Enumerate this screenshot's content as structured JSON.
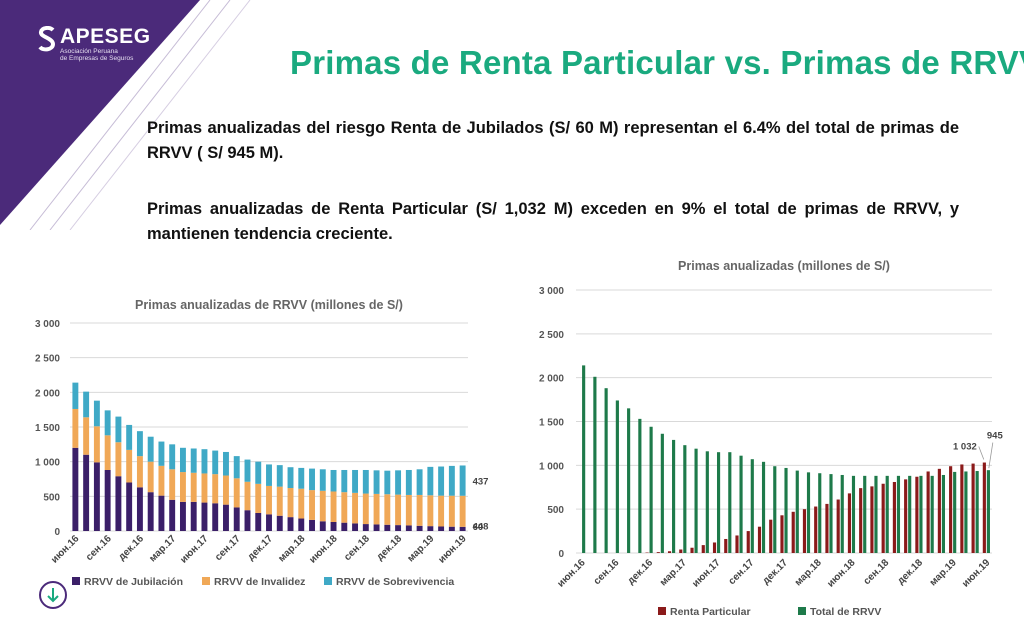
{
  "logo": {
    "name": "APESEG",
    "subtitle_line1": "Asociación Peruana",
    "subtitle_line2": "de Empresas de Seguros"
  },
  "title": "Primas de Renta Particular vs. Primas de RRVV",
  "paragraph1": "Primas anualizadas del riesgo Renta de Jubilados (S/ 60 M) representan el 6.4% del total de primas de RRVV ( S/ 945 M).",
  "paragraph2": "Primas anualizadas de Renta Particular (S/ 1,032 M) exceden en 9% el  total de primas de RRVV, y mantienen tendencia creciente.",
  "colors": {
    "purple": "#4b2a7a",
    "green": "#1aaa7f",
    "orange": "#f0a857",
    "blue": "#3fa9c6",
    "dark_purple": "#3b1f68",
    "dark_green": "#1e7a4a",
    "dark_red": "#8b1a1a"
  },
  "chart_data": [
    {
      "type": "bar",
      "stacked": true,
      "title": "Primas anualizadas de RRVV (millones de S/)",
      "categories": [
        "июн.16",
        "июл.16",
        "авг.16",
        "сен.16",
        "окт.16",
        "ноя.16",
        "дек.16",
        "янв.17",
        "фев.17",
        "мар.17",
        "апр.17",
        "май.17",
        "июн.17",
        "июл.17",
        "авг.17",
        "сен.17",
        "окт.17",
        "ноя.17",
        "дек.17",
        "янв.18",
        "фев.18",
        "мар.18",
        "апр.18",
        "май.18",
        "июн.18",
        "июл.18",
        "авг.18",
        "сен.18",
        "окт.18",
        "ноя.18",
        "дек.18",
        "янв.19",
        "фев.19",
        "мар.19",
        "апр.19",
        "май.19",
        "июн.19"
      ],
      "tick_labels": [
        "июн.16",
        "сен.16",
        "дек.16",
        "мар.17",
        "июн.17",
        "сен.17",
        "дек.17",
        "мар.18",
        "июн.18",
        "сен.18",
        "дек.18",
        "мар.19",
        "июн.19"
      ],
      "series": [
        {
          "name": "RRVV de Jubilación",
          "values": [
            1200,
            1100,
            990,
            880,
            790,
            700,
            630,
            560,
            510,
            450,
            420,
            420,
            410,
            400,
            380,
            340,
            300,
            260,
            240,
            220,
            200,
            180,
            160,
            140,
            130,
            120,
            110,
            100,
            95,
            90,
            85,
            80,
            75,
            70,
            65,
            62,
            60
          ]
        },
        {
          "name": "RRVV de Invalidez",
          "values": [
            560,
            540,
            520,
            500,
            490,
            470,
            450,
            440,
            430,
            440,
            430,
            420,
            420,
            420,
            420,
            420,
            410,
            420,
            410,
            420,
            420,
            430,
            430,
            440,
            440,
            440,
            440,
            440,
            440,
            440,
            440,
            440,
            445,
            445,
            445,
            447,
            448
          ]
        },
        {
          "name": "RRVV de Sobrevivencia",
          "values": [
            380,
            370,
            370,
            360,
            370,
            360,
            360,
            360,
            350,
            360,
            350,
            350,
            350,
            340,
            340,
            320,
            320,
            320,
            310,
            310,
            300,
            300,
            310,
            310,
            310,
            320,
            330,
            340,
            340,
            340,
            350,
            360,
            370,
            410,
            420,
            430,
            437
          ]
        }
      ],
      "data_labels": [
        "437",
        "448",
        "60"
      ],
      "ylim": [
        0,
        3000
      ],
      "y_ticks": [
        "3 000",
        "2 500",
        "2 000",
        "1 500",
        "1 000",
        "500",
        "0"
      ],
      "legend": "bottom"
    },
    {
      "type": "bar",
      "title": "Primas anualizadas (millones de S/)",
      "categories": [
        "июн.16",
        "июл.16",
        "авг.16",
        "сен.16",
        "окт.16",
        "ноя.16",
        "дек.16",
        "янв.17",
        "фев.17",
        "мар.17",
        "апр.17",
        "май.17",
        "июн.17",
        "июл.17",
        "авг.17",
        "сен.17",
        "окт.17",
        "ноя.17",
        "дек.17",
        "янв.18",
        "фев.18",
        "мар.18",
        "апр.18",
        "май.18",
        "июн.18",
        "июл.18",
        "авг.18",
        "сен.18",
        "окт.18",
        "ноя.18",
        "дек.18",
        "янв.19",
        "фев.19",
        "мар.19",
        "апр.19",
        "май.19",
        "июн.19"
      ],
      "tick_labels": [
        "июн.16",
        "сен.16",
        "дек.16",
        "мар.17",
        "июн.17",
        "сен.17",
        "дек.17",
        "мар.18",
        "июн.18",
        "сен.18",
        "дек.18",
        "мар.19",
        "июн.19"
      ],
      "series": [
        {
          "name": "Renta Particular",
          "values": [
            0,
            0,
            0,
            0,
            0,
            0,
            5,
            10,
            20,
            40,
            60,
            90,
            120,
            160,
            200,
            250,
            300,
            380,
            430,
            470,
            500,
            530,
            560,
            610,
            680,
            740,
            760,
            790,
            810,
            840,
            870,
            930,
            960,
            990,
            1010,
            1020,
            1032
          ]
        },
        {
          "name": "Total de RRVV",
          "values": [
            2140,
            2010,
            1880,
            1740,
            1650,
            1530,
            1440,
            1360,
            1290,
            1230,
            1190,
            1160,
            1150,
            1150,
            1110,
            1070,
            1040,
            990,
            970,
            940,
            920,
            910,
            900,
            890,
            880,
            880,
            880,
            880,
            880,
            880,
            880,
            880,
            890,
            925,
            930,
            935,
            945
          ]
        }
      ],
      "data_labels": [
        "1 032",
        "945"
      ],
      "ylim": [
        0,
        3000
      ],
      "y_ticks": [
        "3 000",
        "2 500",
        "2 000",
        "1 500",
        "1 000",
        "500",
        "0"
      ],
      "legend": "bottom"
    }
  ]
}
